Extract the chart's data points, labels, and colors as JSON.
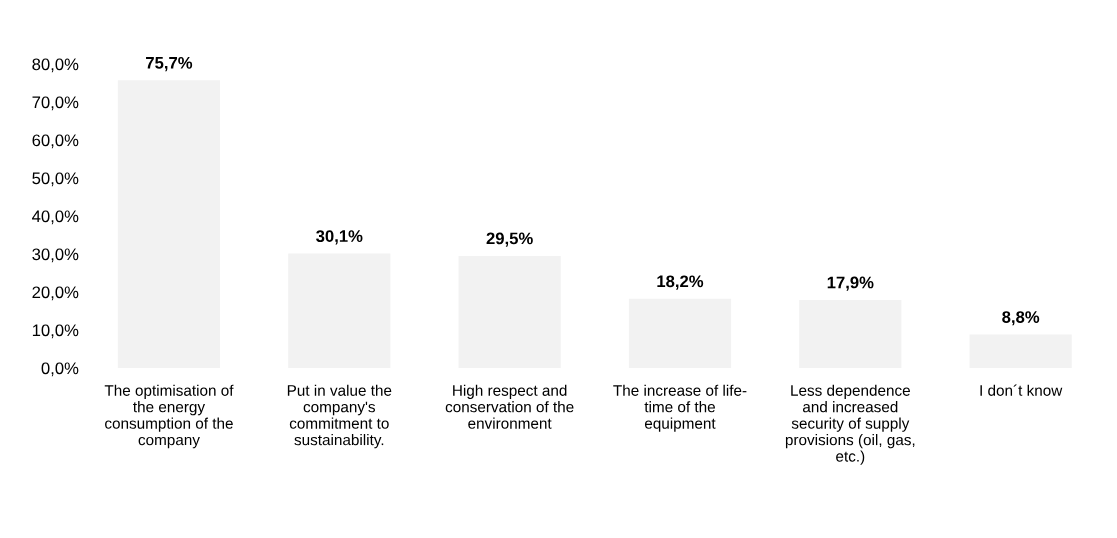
{
  "chart_data": {
    "type": "bar",
    "categories": [
      "The optimisation of\nthe energy\nconsumption of the\ncompany",
      "Put in value the\ncompany's\ncommitment to\nsustainability.",
      "High respect and\nconservation of the\nenvironment",
      "The increase of life-\ntime of the\nequipment",
      "Less dependence\nand increased\nsecurity of supply\nprovisions (oil, gas,\netc.)",
      "I don´t know"
    ],
    "values": [
      75.7,
      30.1,
      29.5,
      18.2,
      17.9,
      8.8
    ],
    "value_labels": [
      "75,7%",
      "30,1%",
      "29,5%",
      "18,2%",
      "17,9%",
      "8,8%"
    ],
    "color": "#f2f2f2",
    "ylim": [
      0,
      80
    ],
    "yticks": [
      {
        "value": 0,
        "label": "0,0%"
      },
      {
        "value": 10,
        "label": "10,0%"
      },
      {
        "value": 20,
        "label": "20,0%"
      },
      {
        "value": 30,
        "label": "30,0%"
      },
      {
        "value": 40,
        "label": "40,0%"
      },
      {
        "value": 50,
        "label": "50,0%"
      },
      {
        "value": 60,
        "label": "60,0%"
      },
      {
        "value": 70,
        "label": "70,0%"
      },
      {
        "value": 80,
        "label": "80,0%"
      }
    ],
    "grid": false,
    "legend": false
  }
}
